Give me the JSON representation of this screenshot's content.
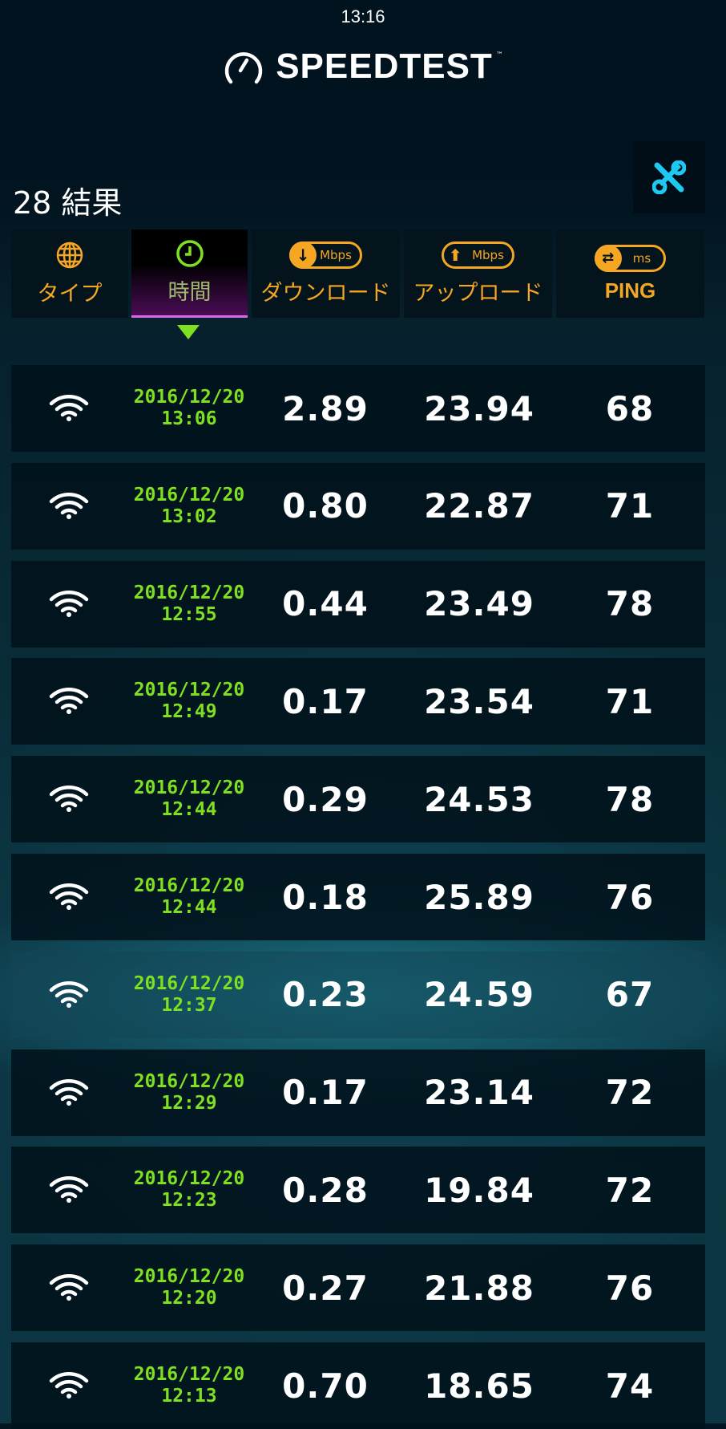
{
  "status_bar": {
    "time": "13:16"
  },
  "header": {
    "logo_text": "SPEEDTEST",
    "logo_tm": "™"
  },
  "results": {
    "count_label": "28 結果"
  },
  "toolbar": {
    "tools_icon": "wrench-screwdriver-icon",
    "accent": "#1ec8f0"
  },
  "columns": [
    {
      "label": "タイプ",
      "icon": "globe-icon"
    },
    {
      "label": "時間",
      "icon": "clock-icon",
      "active": true
    },
    {
      "label": "ダウンロード",
      "icon": "download-icon",
      "unit": "Mbps"
    },
    {
      "label": "アップロード",
      "icon": "upload-icon",
      "unit": "Mbps"
    },
    {
      "label": "PING",
      "icon": "ping-icon",
      "unit": "ms"
    }
  ],
  "colors": {
    "header": "#f5a623",
    "date": "#7ee021",
    "active": "#d86be8"
  },
  "rows": [
    {
      "type": "wifi",
      "date": "2016/12/20",
      "time": "13:06",
      "download": "2.89",
      "upload": "23.94",
      "ping": "68"
    },
    {
      "type": "wifi",
      "date": "2016/12/20",
      "time": "13:02",
      "download": "0.80",
      "upload": "22.87",
      "ping": "71"
    },
    {
      "type": "wifi",
      "date": "2016/12/20",
      "time": "12:55",
      "download": "0.44",
      "upload": "23.49",
      "ping": "78"
    },
    {
      "type": "wifi",
      "date": "2016/12/20",
      "time": "12:49",
      "download": "0.17",
      "upload": "23.54",
      "ping": "71"
    },
    {
      "type": "wifi",
      "date": "2016/12/20",
      "time": "12:44",
      "download": "0.29",
      "upload": "24.53",
      "ping": "78"
    },
    {
      "type": "wifi",
      "date": "2016/12/20",
      "time": "12:44",
      "download": "0.18",
      "upload": "25.89",
      "ping": "76"
    },
    {
      "type": "wifi",
      "date": "2016/12/20",
      "time": "12:37",
      "download": "0.23",
      "upload": "24.59",
      "ping": "67"
    },
    {
      "type": "wifi",
      "date": "2016/12/20",
      "time": "12:29",
      "download": "0.17",
      "upload": "23.14",
      "ping": "72"
    },
    {
      "type": "wifi",
      "date": "2016/12/20",
      "time": "12:23",
      "download": "0.28",
      "upload": "19.84",
      "ping": "72"
    },
    {
      "type": "wifi",
      "date": "2016/12/20",
      "time": "12:20",
      "download": "0.27",
      "upload": "21.88",
      "ping": "76"
    },
    {
      "type": "wifi",
      "date": "2016/12/20",
      "time": "12:13",
      "download": "0.70",
      "upload": "18.65",
      "ping": "74"
    }
  ]
}
